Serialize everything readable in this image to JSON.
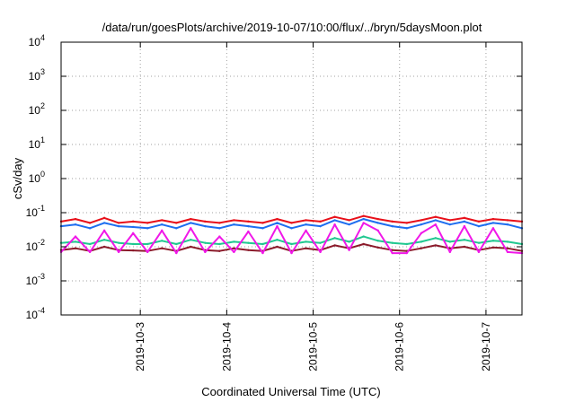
{
  "chart_data": {
    "type": "line",
    "title": "/data/run/goesPlots/archive/2019-10-07/10:00/flux/../bryn/5daysMoon.plot",
    "xlabel": "Coordinated Universal Time (UTC)",
    "ylabel": "cSv/day",
    "yscale": "log",
    "ylim": [
      0.0001,
      10000
    ],
    "xlim": [
      "2019-10-02T02:00",
      "2019-10-07T10:00"
    ],
    "grid": true,
    "legend": "none",
    "y_ticks": [
      {
        "value": 0.0001,
        "base": "10",
        "exp": "-4"
      },
      {
        "value": 0.001,
        "base": "10",
        "exp": "-3"
      },
      {
        "value": 0.01,
        "base": "10",
        "exp": "-2"
      },
      {
        "value": 0.1,
        "base": "10",
        "exp": "-1"
      },
      {
        "value": 1,
        "base": "10",
        "exp": "0"
      },
      {
        "value": 10,
        "base": "10",
        "exp": "1"
      },
      {
        "value": 100,
        "base": "10",
        "exp": "2"
      },
      {
        "value": 1000,
        "base": "10",
        "exp": "3"
      },
      {
        "value": 10000,
        "base": "10",
        "exp": "4"
      }
    ],
    "x_ticks": [
      {
        "value": "2019-10-03T00:00",
        "label": "2019-10-3"
      },
      {
        "value": "2019-10-04T00:00",
        "label": "2019-10-4"
      },
      {
        "value": "2019-10-05T00:00",
        "label": "2019-10-5"
      },
      {
        "value": "2019-10-06T00:00",
        "label": "2019-10-6"
      },
      {
        "value": "2019-10-07T00:00",
        "label": "2019-10-7"
      }
    ],
    "series": [
      {
        "color": "#e8101a",
        "x": [
          "2019-10-02T02:00",
          "2019-10-02T06:00",
          "2019-10-02T10:00",
          "2019-10-02T14:00",
          "2019-10-02T18:00",
          "2019-10-02T22:00",
          "2019-10-03T02:00",
          "2019-10-03T06:00",
          "2019-10-03T10:00",
          "2019-10-03T14:00",
          "2019-10-03T18:00",
          "2019-10-03T22:00",
          "2019-10-04T02:00",
          "2019-10-04T06:00",
          "2019-10-04T10:00",
          "2019-10-04T14:00",
          "2019-10-04T18:00",
          "2019-10-04T22:00",
          "2019-10-05T02:00",
          "2019-10-05T06:00",
          "2019-10-05T10:00",
          "2019-10-05T14:00",
          "2019-10-05T18:00",
          "2019-10-05T22:00",
          "2019-10-06T02:00",
          "2019-10-06T06:00",
          "2019-10-06T10:00",
          "2019-10-06T14:00",
          "2019-10-06T18:00",
          "2019-10-06T22:00",
          "2019-10-07T02:00",
          "2019-10-07T06:00",
          "2019-10-07T10:00"
        ],
        "y": [
          0.055,
          0.065,
          0.05,
          0.07,
          0.05,
          0.055,
          0.05,
          0.06,
          0.05,
          0.065,
          0.055,
          0.05,
          0.06,
          0.055,
          0.05,
          0.065,
          0.05,
          0.06,
          0.055,
          0.075,
          0.06,
          0.08,
          0.065,
          0.055,
          0.05,
          0.06,
          0.075,
          0.06,
          0.07,
          0.055,
          0.065,
          0.06,
          0.055
        ]
      },
      {
        "color": "#1e6ef0",
        "x": [
          "2019-10-02T02:00",
          "2019-10-02T06:00",
          "2019-10-02T10:00",
          "2019-10-02T14:00",
          "2019-10-02T18:00",
          "2019-10-02T22:00",
          "2019-10-03T02:00",
          "2019-10-03T06:00",
          "2019-10-03T10:00",
          "2019-10-03T14:00",
          "2019-10-03T18:00",
          "2019-10-03T22:00",
          "2019-10-04T02:00",
          "2019-10-04T06:00",
          "2019-10-04T10:00",
          "2019-10-04T14:00",
          "2019-10-04T18:00",
          "2019-10-04T22:00",
          "2019-10-05T02:00",
          "2019-10-05T06:00",
          "2019-10-05T10:00",
          "2019-10-05T14:00",
          "2019-10-05T18:00",
          "2019-10-05T22:00",
          "2019-10-06T02:00",
          "2019-10-06T06:00",
          "2019-10-06T10:00",
          "2019-10-06T14:00",
          "2019-10-06T18:00",
          "2019-10-06T22:00",
          "2019-10-07T02:00",
          "2019-10-07T06:00",
          "2019-10-07T10:00"
        ],
        "y": [
          0.04,
          0.045,
          0.035,
          0.05,
          0.04,
          0.038,
          0.035,
          0.045,
          0.035,
          0.05,
          0.04,
          0.035,
          0.045,
          0.04,
          0.035,
          0.05,
          0.035,
          0.045,
          0.04,
          0.06,
          0.045,
          0.065,
          0.05,
          0.04,
          0.035,
          0.045,
          0.06,
          0.045,
          0.055,
          0.04,
          0.05,
          0.045,
          0.035
        ]
      },
      {
        "color": "#20c890",
        "x": [
          "2019-10-02T02:00",
          "2019-10-02T06:00",
          "2019-10-02T10:00",
          "2019-10-02T14:00",
          "2019-10-02T18:00",
          "2019-10-02T22:00",
          "2019-10-03T02:00",
          "2019-10-03T06:00",
          "2019-10-03T10:00",
          "2019-10-03T14:00",
          "2019-10-03T18:00",
          "2019-10-03T22:00",
          "2019-10-04T02:00",
          "2019-10-04T06:00",
          "2019-10-04T10:00",
          "2019-10-04T14:00",
          "2019-10-04T18:00",
          "2019-10-04T22:00",
          "2019-10-05T02:00",
          "2019-10-05T06:00",
          "2019-10-05T10:00",
          "2019-10-05T14:00",
          "2019-10-05T18:00",
          "2019-10-05T22:00",
          "2019-10-06T02:00",
          "2019-10-06T06:00",
          "2019-10-06T10:00",
          "2019-10-06T14:00",
          "2019-10-06T18:00",
          "2019-10-06T22:00",
          "2019-10-07T02:00",
          "2019-10-07T06:00",
          "2019-10-07T10:00"
        ],
        "y": [
          0.013,
          0.014,
          0.012,
          0.016,
          0.013,
          0.012,
          0.012,
          0.015,
          0.012,
          0.016,
          0.013,
          0.012,
          0.014,
          0.013,
          0.012,
          0.016,
          0.012,
          0.014,
          0.013,
          0.018,
          0.014,
          0.02,
          0.015,
          0.013,
          0.012,
          0.014,
          0.018,
          0.014,
          0.016,
          0.013,
          0.015,
          0.014,
          0.012
        ]
      },
      {
        "color": "#8b1a2a",
        "x": [
          "2019-10-02T02:00",
          "2019-10-02T06:00",
          "2019-10-02T10:00",
          "2019-10-02T14:00",
          "2019-10-02T18:00",
          "2019-10-02T22:00",
          "2019-10-03T02:00",
          "2019-10-03T06:00",
          "2019-10-03T10:00",
          "2019-10-03T14:00",
          "2019-10-03T18:00",
          "2019-10-03T22:00",
          "2019-10-04T02:00",
          "2019-10-04T06:00",
          "2019-10-04T10:00",
          "2019-10-04T14:00",
          "2019-10-04T18:00",
          "2019-10-04T22:00",
          "2019-10-05T02:00",
          "2019-10-05T06:00",
          "2019-10-05T10:00",
          "2019-10-05T14:00",
          "2019-10-05T18:00",
          "2019-10-05T22:00",
          "2019-10-06T02:00",
          "2019-10-06T06:00",
          "2019-10-06T10:00",
          "2019-10-06T14:00",
          "2019-10-06T18:00",
          "2019-10-06T22:00",
          "2019-10-07T02:00",
          "2019-10-07T06:00",
          "2019-10-07T10:00"
        ],
        "y": [
          0.008,
          0.009,
          0.0075,
          0.01,
          0.008,
          0.0078,
          0.0075,
          0.009,
          0.0075,
          0.01,
          0.008,
          0.0075,
          0.009,
          0.008,
          0.0075,
          0.01,
          0.0075,
          0.009,
          0.008,
          0.011,
          0.009,
          0.012,
          0.0095,
          0.008,
          0.0075,
          0.009,
          0.011,
          0.009,
          0.01,
          0.008,
          0.0095,
          0.009,
          0.0075
        ]
      },
      {
        "color": "#f018e8",
        "x": [
          "2019-10-02T02:00",
          "2019-10-02T06:00",
          "2019-10-02T10:00",
          "2019-10-02T14:00",
          "2019-10-02T18:00",
          "2019-10-02T22:00",
          "2019-10-03T02:00",
          "2019-10-03T06:00",
          "2019-10-03T10:00",
          "2019-10-03T14:00",
          "2019-10-03T18:00",
          "2019-10-03T22:00",
          "2019-10-04T02:00",
          "2019-10-04T06:00",
          "2019-10-04T10:00",
          "2019-10-04T14:00",
          "2019-10-04T18:00",
          "2019-10-04T22:00",
          "2019-10-05T02:00",
          "2019-10-05T06:00",
          "2019-10-05T10:00",
          "2019-10-05T14:00",
          "2019-10-05T18:00",
          "2019-10-05T22:00",
          "2019-10-06T02:00",
          "2019-10-06T06:00",
          "2019-10-06T10:00",
          "2019-10-06T14:00",
          "2019-10-06T18:00",
          "2019-10-06T22:00",
          "2019-10-07T02:00",
          "2019-10-07T06:00",
          "2019-10-07T10:00"
        ],
        "y": [
          0.007,
          0.02,
          0.007,
          0.03,
          0.007,
          0.025,
          0.007,
          0.03,
          0.0065,
          0.035,
          0.007,
          0.02,
          0.007,
          0.028,
          0.0065,
          0.04,
          0.0065,
          0.03,
          0.007,
          0.045,
          0.008,
          0.05,
          0.03,
          0.0065,
          0.0065,
          0.025,
          0.045,
          0.007,
          0.04,
          0.007,
          0.035,
          0.007,
          0.0065
        ]
      }
    ]
  }
}
